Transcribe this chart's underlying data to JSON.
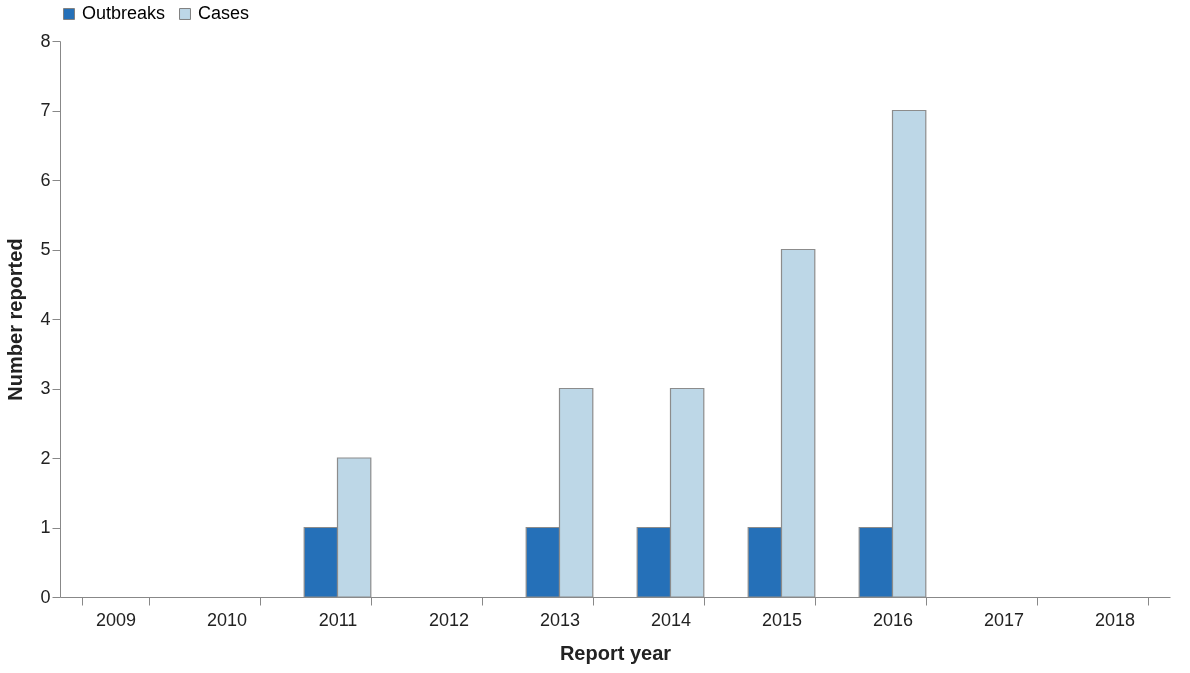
{
  "chart_data": {
    "type": "bar",
    "xlabel": "Report year",
    "ylabel": "Number reported",
    "categories": [
      "2009",
      "2010",
      "2011",
      "2012",
      "2013",
      "2014",
      "2015",
      "2016",
      "2017",
      "2018"
    ],
    "series": [
      {
        "name": "Outbreaks",
        "color": "#2570b8",
        "values": [
          0,
          0,
          1,
          0,
          1,
          1,
          1,
          1,
          0,
          0
        ]
      },
      {
        "name": "Cases",
        "color": "#bdd7e7",
        "values": [
          0,
          0,
          2,
          0,
          3,
          3,
          5,
          7,
          0,
          0
        ]
      }
    ],
    "ylim": [
      0,
      8
    ],
    "yticks": [
      0,
      1,
      2,
      3,
      4,
      5,
      6,
      7,
      8
    ],
    "grid": false,
    "legend": "top"
  }
}
